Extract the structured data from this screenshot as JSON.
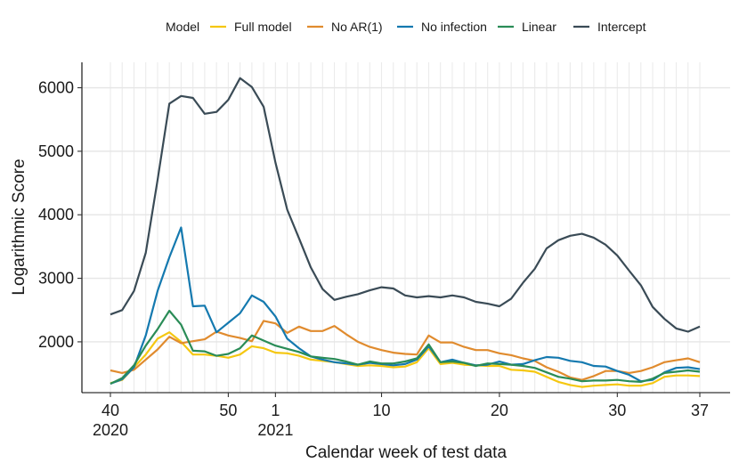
{
  "chart_data": {
    "type": "line",
    "xlabel": "Calendar week of test data",
    "ylabel": "Logarithmic Score",
    "ylim": [
      1200,
      6400
    ],
    "y_ticks": [
      2000,
      3000,
      4000,
      5000,
      6000
    ],
    "x_ticks": [
      {
        "index": 0,
        "label": "40",
        "year": "2020"
      },
      {
        "index": 10,
        "label": "50",
        "year": ""
      },
      {
        "index": 14,
        "label": "1",
        "year": "2021"
      },
      {
        "index": 23,
        "label": "10",
        "year": ""
      },
      {
        "index": 33,
        "label": "20",
        "year": ""
      },
      {
        "index": 43,
        "label": "30",
        "year": ""
      },
      {
        "index": 50,
        "label": "37",
        "year": ""
      }
    ],
    "x": [
      40,
      41,
      42,
      43,
      44,
      45,
      46,
      47,
      48,
      49,
      50,
      51,
      52,
      53,
      1,
      2,
      3,
      4,
      5,
      6,
      7,
      8,
      9,
      10,
      11,
      12,
      13,
      14,
      15,
      16,
      17,
      18,
      19,
      20,
      21,
      22,
      23,
      24,
      25,
      26,
      27,
      28,
      29,
      30,
      31,
      32,
      33,
      34,
      35,
      36,
      37
    ],
    "legend_title": "Model",
    "series": [
      {
        "name": "Full model",
        "color": "#F5C710",
        "values": [
          1350,
          1400,
          1600,
          1800,
          2050,
          2150,
          2000,
          1800,
          1800,
          1780,
          1750,
          1800,
          1930,
          1900,
          1830,
          1820,
          1780,
          1720,
          1700,
          1680,
          1650,
          1620,
          1630,
          1620,
          1600,
          1610,
          1680,
          1900,
          1650,
          1670,
          1640,
          1630,
          1620,
          1620,
          1560,
          1550,
          1530,
          1450,
          1370,
          1320,
          1290,
          1310,
          1320,
          1330,
          1310,
          1310,
          1350,
          1450,
          1470,
          1470,
          1460
        ]
      },
      {
        "name": "No AR(1)",
        "color": "#E08B2E",
        "values": [
          1550,
          1510,
          1560,
          1720,
          1880,
          2080,
          1980,
          2010,
          2040,
          2160,
          2100,
          2060,
          2010,
          2330,
          2290,
          2140,
          2240,
          2170,
          2170,
          2250,
          2120,
          2000,
          1920,
          1870,
          1830,
          1810,
          1800,
          2100,
          1990,
          1990,
          1920,
          1870,
          1870,
          1820,
          1790,
          1740,
          1700,
          1600,
          1530,
          1440,
          1400,
          1460,
          1540,
          1540,
          1510,
          1540,
          1600,
          1680,
          1710,
          1740,
          1680
        ]
      },
      {
        "name": "No infection",
        "color": "#1479AF",
        "values": [
          1340,
          1410,
          1600,
          2100,
          2800,
          3330,
          3800,
          2560,
          2570,
          2150,
          2300,
          2450,
          2730,
          2630,
          2400,
          2050,
          1900,
          1770,
          1720,
          1680,
          1660,
          1640,
          1670,
          1650,
          1630,
          1650,
          1720,
          1930,
          1680,
          1720,
          1670,
          1630,
          1640,
          1690,
          1640,
          1650,
          1710,
          1760,
          1750,
          1700,
          1680,
          1620,
          1610,
          1540,
          1480,
          1380,
          1400,
          1520,
          1590,
          1600,
          1570
        ]
      },
      {
        "name": "Linear",
        "color": "#2A8C57",
        "values": [
          1340,
          1430,
          1630,
          1940,
          2200,
          2490,
          2270,
          1860,
          1850,
          1780,
          1810,
          1900,
          2100,
          2020,
          1940,
          1890,
          1840,
          1770,
          1750,
          1730,
          1690,
          1640,
          1690,
          1660,
          1660,
          1690,
          1740,
          1960,
          1680,
          1690,
          1670,
          1620,
          1660,
          1650,
          1640,
          1620,
          1590,
          1520,
          1450,
          1420,
          1380,
          1390,
          1390,
          1400,
          1380,
          1370,
          1420,
          1510,
          1530,
          1550,
          1530
        ]
      },
      {
        "name": "Intercept",
        "color": "#3A4B56",
        "values": [
          2430,
          2500,
          2800,
          3400,
          4550,
          5750,
          5870,
          5840,
          5590,
          5620,
          5810,
          6150,
          6010,
          5700,
          4820,
          4080,
          3630,
          3170,
          2830,
          2660,
          2710,
          2750,
          2810,
          2860,
          2840,
          2730,
          2700,
          2720,
          2700,
          2730,
          2700,
          2630,
          2600,
          2560,
          2680,
          2930,
          3150,
          3470,
          3600,
          3670,
          3700,
          3640,
          3530,
          3360,
          3120,
          2890,
          2550,
          2360,
          2210,
          2160,
          2240
        ]
      }
    ]
  }
}
